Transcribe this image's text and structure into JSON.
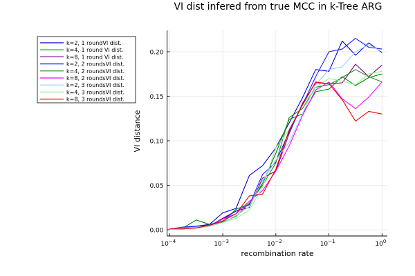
{
  "chart_data": {
    "type": "line",
    "title": "VI dist infered from true MCC in k-Tree ARG",
    "xlabel": "recombination rate",
    "ylabel": "VI distance",
    "xscale": "log10",
    "xlim": [
      -4.05,
      0.1
    ],
    "ylim": [
      -0.007,
      0.224
    ],
    "xticks": [
      {
        "value": -4,
        "base": "10",
        "exp": "−4"
      },
      {
        "value": -3,
        "base": "10",
        "exp": "−3"
      },
      {
        "value": -2,
        "base": "10",
        "exp": "−2"
      },
      {
        "value": -1,
        "base": "10",
        "exp": "−1"
      },
      {
        "value": 0,
        "base": "10",
        "exp": "0"
      }
    ],
    "yticks": [
      "0.00",
      "0.05",
      "0.10",
      "0.15",
      "0.20"
    ],
    "ytick_values": [
      0,
      0.05,
      0.1,
      0.15,
      0.2
    ],
    "grid": true,
    "legend_position": "top-left outside",
    "x_log10": [
      -4,
      -3.75,
      -3.5,
      -3.25,
      -3,
      -2.75,
      -2.5,
      -2.25,
      -2,
      -1.75,
      -1.5,
      -1.25,
      -1,
      -0.75,
      -0.5,
      -0.25,
      0
    ],
    "series": [
      {
        "name": "k=2, 1 roundVI dist.",
        "color": "#0000cc",
        "values": [
          0.001,
          0.002,
          0.004,
          0.006,
          0.019,
          0.024,
          0.061,
          0.072,
          0.092,
          0.12,
          0.148,
          0.18,
          0.178,
          0.212,
          0.196,
          0.21,
          0.199
        ]
      },
      {
        "name": "k=4, 1 round VI dist.",
        "color": "#008800",
        "values": [
          0.001,
          0.002,
          0.011,
          0.006,
          0.009,
          0.023,
          0.029,
          0.052,
          0.086,
          0.124,
          0.13,
          0.155,
          0.158,
          0.172,
          0.162,
          0.171,
          0.175
        ]
      },
      {
        "name": "k=8, 1 round VI dist.",
        "color": "#800080",
        "values": [
          0.001,
          0.001,
          0.002,
          0.004,
          0.013,
          0.021,
          0.025,
          0.058,
          0.066,
          0.108,
          0.142,
          0.165,
          0.164,
          0.165,
          0.186,
          0.172,
          0.185
        ]
      },
      {
        "name": "k=2, 2 roundsVI dist.",
        "color": "#1a1aff",
        "values": [
          0.001,
          0.003,
          0.004,
          0.005,
          0.012,
          0.021,
          0.028,
          0.062,
          0.076,
          0.11,
          0.14,
          0.172,
          0.2,
          0.203,
          0.215,
          0.205,
          0.203
        ]
      },
      {
        "name": "k=4, 2 roundsVI dist.",
        "color": "#228b22",
        "values": [
          0.001,
          0.001,
          0.003,
          0.005,
          0.009,
          0.015,
          0.03,
          0.05,
          0.075,
          0.126,
          0.136,
          0.16,
          0.163,
          0.171,
          0.18,
          0.172,
          0.166
        ]
      },
      {
        "name": "k=8, 2 roundsVI dist.",
        "color": "#ff00ff",
        "values": [
          0.001,
          0.001,
          0.003,
          0.004,
          0.012,
          0.018,
          0.032,
          0.044,
          0.066,
          0.094,
          0.128,
          0.157,
          0.166,
          0.147,
          0.136,
          0.149,
          0.166
        ]
      },
      {
        "name": "k=2, 3 roundsVI dist.",
        "color": "#99ccff",
        "values": [
          0.001,
          0.002,
          0.003,
          0.004,
          0.008,
          0.016,
          0.026,
          0.055,
          0.078,
          0.098,
          0.13,
          0.163,
          0.18,
          0.183,
          0.2,
          0.208,
          0.2
        ]
      },
      {
        "name": "k=4, 3 roundsVI dist.",
        "color": "#99ee99",
        "values": [
          0.001,
          0.001,
          0.002,
          0.004,
          0.008,
          0.013,
          0.022,
          0.048,
          0.092,
          0.112,
          0.14,
          0.16,
          0.17,
          0.167,
          0.163,
          0.175,
          0.178
        ]
      },
      {
        "name": "k=8, 3 roundsVI dist.",
        "color": "#ee0000",
        "values": [
          0.001,
          0.001,
          0.002,
          0.005,
          0.01,
          0.018,
          0.038,
          0.04,
          0.068,
          0.112,
          0.14,
          0.166,
          0.164,
          0.146,
          0.122,
          0.133,
          0.13
        ]
      }
    ]
  }
}
